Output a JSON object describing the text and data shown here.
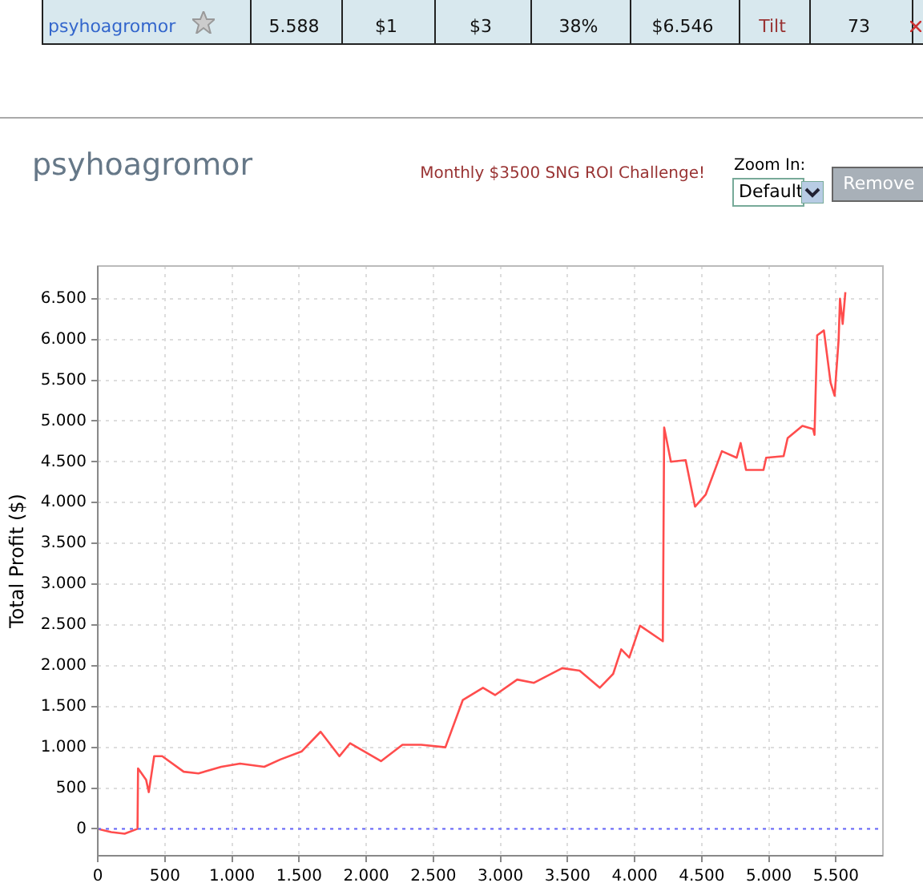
{
  "chart_data": {
    "type": "line",
    "title": "psyhoagromor",
    "ylabel": "Total Profit ($)",
    "annotations": [
      "psyhoagromor",
      "5.588",
      "$1",
      "$3",
      "38%",
      "$6.546",
      "Tilt",
      "73",
      "Monthly $3500 SNG ROI Challenge!",
      "Zoom In:",
      "Default",
      "Remove"
    ],
    "series": [
      {
        "color": "#ff4d4d",
        "x": [
          0,
          100,
          200,
          296,
          300,
          360,
          380,
          420,
          480,
          640,
          750,
          920,
          1060,
          1240,
          1360,
          1520,
          1660,
          1800,
          1880,
          2110,
          2270,
          2410,
          2590,
          2720,
          2870,
          2960,
          3125,
          3250,
          3460,
          3590,
          3740,
          3840,
          3900,
          3960,
          4040,
          4210,
          4220,
          4270,
          4380,
          4450,
          4530,
          4650,
          4760,
          4790,
          4830,
          4960,
          4980,
          5110,
          5140,
          5250,
          5330,
          5340,
          5360,
          5410,
          5460,
          5490,
          5520,
          5530,
          5550,
          5570
        ],
        "values": [
          0,
          -40,
          -60,
          0,
          740,
          600,
          450,
          890,
          890,
          700,
          680,
          760,
          800,
          760,
          850,
          950,
          1190,
          890,
          1050,
          830,
          1030,
          1030,
          1000,
          1580,
          1730,
          1640,
          1830,
          1790,
          1970,
          1940,
          1730,
          1900,
          2200,
          2100,
          2490,
          2300,
          4920,
          4500,
          4520,
          3950,
          4100,
          4630,
          4550,
          4730,
          4400,
          4400,
          4550,
          4570,
          4790,
          4940,
          4900,
          4830,
          6050,
          6110,
          5470,
          5310,
          6000,
          6500,
          6190,
          6580
        ]
      }
    ],
    "xlim": [
      0,
      5850
    ],
    "ylim": [
      -330,
      6900
    ],
    "xticks": [
      0,
      {
        "value": 500,
        "label": "500"
      },
      {
        "value": 1000,
        "label": "1.000"
      },
      {
        "value": 1500,
        "label": "1.500"
      },
      {
        "value": 2000,
        "label": "2.000"
      },
      {
        "value": 2500,
        "label": "2.500"
      },
      {
        "value": 3000,
        "label": "3.000"
      },
      {
        "value": 3500,
        "label": "3.500"
      },
      {
        "value": 4000,
        "label": "4.000"
      },
      {
        "value": 4500,
        "label": "4.500"
      },
      {
        "value": 5000,
        "label": "5.000"
      },
      {
        "value": 5500,
        "label": "5.500"
      }
    ],
    "yticks": [
      0,
      500,
      {
        "value": 1000,
        "label": "1.000"
      },
      {
        "value": 1500,
        "label": "1.500"
      },
      {
        "value": 2000,
        "label": "2.000"
      },
      {
        "value": 2500,
        "label": "2.500"
      },
      {
        "value": 3000,
        "label": "3.000"
      },
      {
        "value": 3500,
        "label": "3.500"
      },
      {
        "value": 4000,
        "label": "4.000"
      },
      {
        "value": 4500,
        "label": "4.500"
      },
      {
        "value": 5000,
        "label": "5.000"
      },
      {
        "value": 5500,
        "label": "5.500"
      },
      {
        "value": 6000,
        "label": "6.000"
      },
      {
        "value": 6500,
        "label": "6.500"
      }
    ],
    "ref_lines": [
      {
        "axis": "y",
        "value": 0,
        "color": "#6666ff",
        "line_style": "dotted"
      }
    ],
    "grid": true,
    "marker": "none",
    "line_style": "solid"
  }
}
